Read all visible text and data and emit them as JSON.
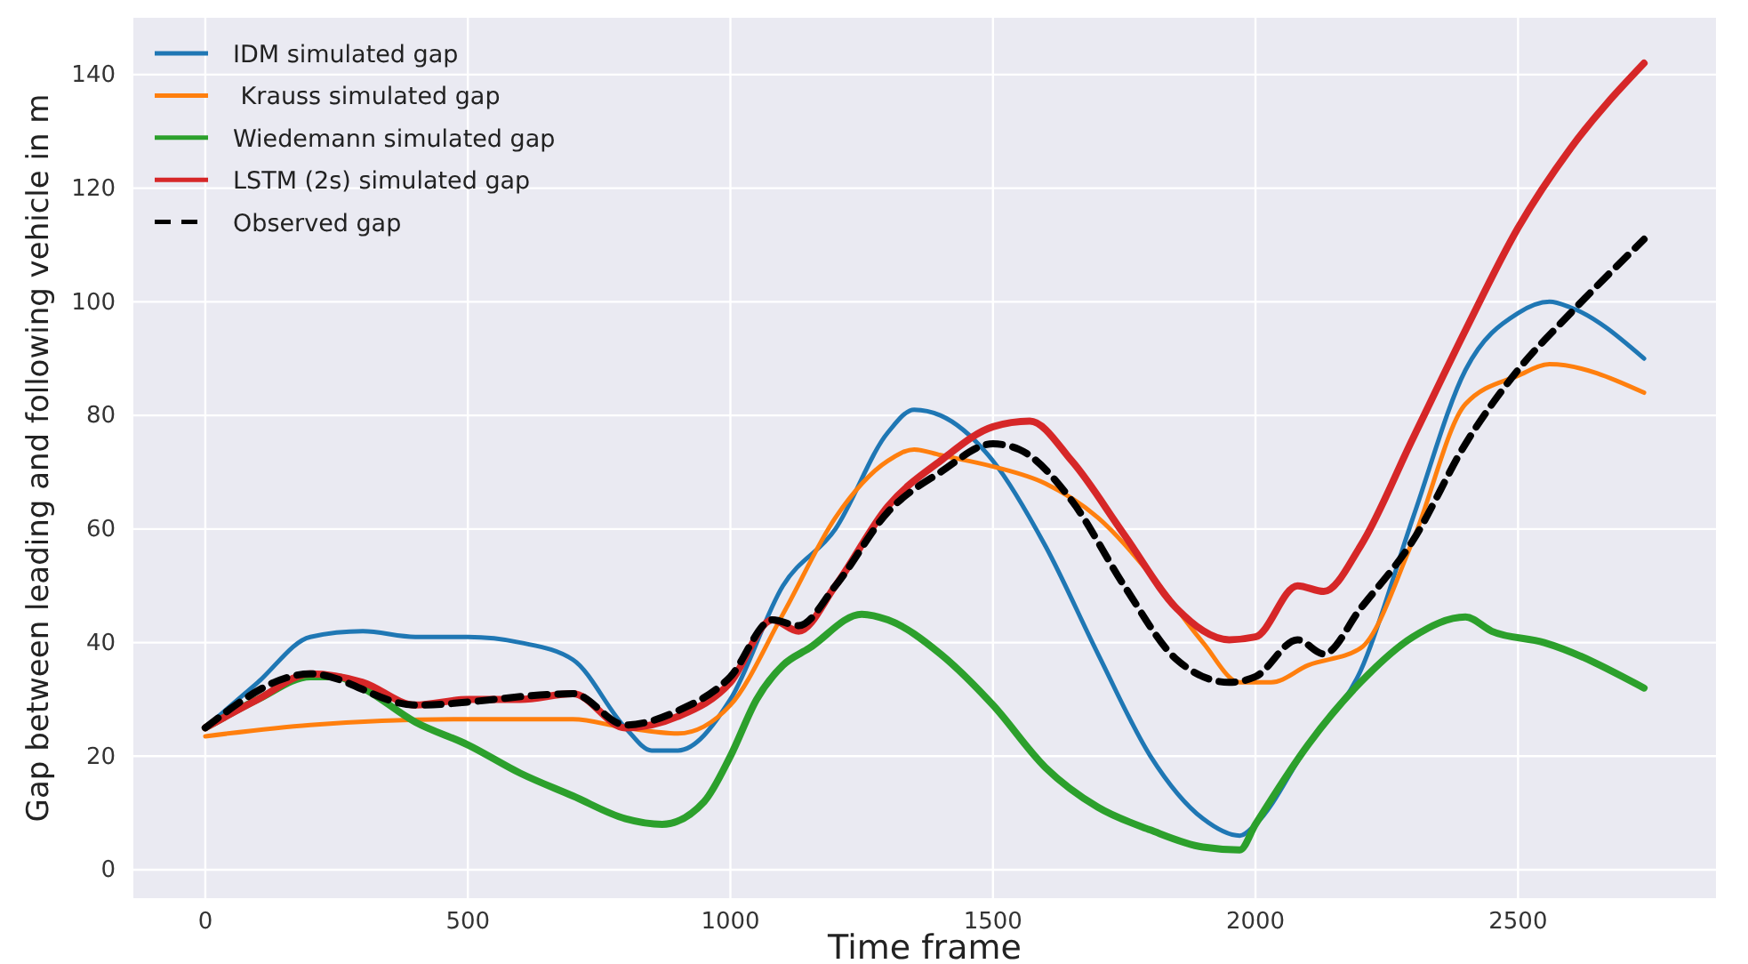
{
  "chart_data": {
    "type": "line",
    "xlabel": "Time frame",
    "ylabel": "Gap between leading and following vehicle in m",
    "xlim": [
      -137,
      2877
    ],
    "ylim": [
      -5,
      150
    ],
    "xticks": [
      0,
      500,
      1000,
      1500,
      2000,
      2500
    ],
    "yticks": [
      0,
      20,
      40,
      60,
      80,
      100,
      120,
      140
    ],
    "grid": true,
    "legend": "top left",
    "series": [
      {
        "name": "IDM simulated gap",
        "color": "#1f77b4",
        "x": [
          0,
          100,
          200,
          300,
          400,
          500,
          600,
          700,
          800,
          850,
          900,
          1000,
          1100,
          1200,
          1300,
          1350,
          1400,
          1500,
          1600,
          1700,
          1800,
          1900,
          1970,
          2000,
          2100,
          2200,
          2300,
          2400,
          2500,
          2560,
          2600,
          2740
        ],
        "values": [
          25,
          33,
          41,
          42,
          41,
          41,
          40,
          37,
          25,
          21,
          21,
          30,
          50,
          60,
          77,
          81,
          80,
          72,
          57,
          38,
          20,
          9,
          6,
          8,
          22,
          35,
          62,
          88,
          98,
          100,
          99,
          90
        ]
      },
      {
        "name": " Krauss simulated gap",
        "color": "#ff7f0e",
        "x": [
          0,
          200,
          500,
          700,
          800,
          900,
          1000,
          1100,
          1200,
          1300,
          1350,
          1400,
          1500,
          1600,
          1700,
          1800,
          1900,
          1970,
          2030,
          2100,
          2200,
          2300,
          2400,
          2500,
          2560,
          2740
        ],
        "values": [
          23.5,
          25.5,
          26.5,
          26.5,
          25,
          24,
          29,
          45,
          62,
          72,
          74,
          73,
          71,
          68,
          62,
          52,
          40,
          33,
          33,
          36,
          39,
          58,
          82,
          87,
          89,
          84
        ]
      },
      {
        "name": "Wiedemann simulated gap",
        "color": "#2ca02c",
        "x": [
          0,
          100,
          200,
          250,
          300,
          400,
          500,
          600,
          700,
          800,
          870,
          950,
          1000,
          1050,
          1100,
          1150,
          1250,
          1300,
          1400,
          1500,
          1600,
          1700,
          1800,
          1900,
          1970,
          2000,
          2100,
          2200,
          2300,
          2400,
          2450,
          2550,
          2740
        ],
        "values": [
          25,
          30,
          34,
          34,
          32,
          26,
          22,
          17,
          13,
          9,
          8,
          12,
          20,
          30,
          36,
          39,
          45,
          44,
          38,
          29,
          18,
          11,
          7,
          4,
          3.5,
          8,
          22,
          33,
          41,
          44.5,
          42,
          40,
          32
        ]
      },
      {
        "name": "LSTM (2s) simulated gap",
        "color": "#d62728",
        "x": [
          0,
          100,
          200,
          300,
          400,
          500,
          600,
          700,
          800,
          900,
          1000,
          1080,
          1130,
          1200,
          1300,
          1400,
          1500,
          1570,
          1650,
          1750,
          1850,
          1950,
          2000,
          2080,
          2130,
          2200,
          2300,
          2400,
          2500,
          2600,
          2740
        ],
        "values": [
          25,
          30,
          34.5,
          33,
          29,
          30,
          30,
          31,
          25,
          27,
          33,
          44,
          42,
          50,
          64,
          72,
          78,
          79,
          72,
          59,
          46,
          40.5,
          41,
          50,
          49,
          57,
          76,
          95,
          113,
          127,
          142
        ]
      },
      {
        "name": "Observed gap",
        "color": "#000000",
        "line_style": "dashed",
        "x": [
          0,
          200,
          400,
          700,
          800,
          900,
          1000,
          1080,
          1130,
          1200,
          1300,
          1400,
          1500,
          1550,
          1650,
          1750,
          1850,
          1950,
          2000,
          2080,
          2130,
          2200,
          2300,
          2400,
          2500,
          2600,
          2740
        ],
        "values": [
          25,
          34.5,
          29,
          31,
          25.5,
          28,
          34,
          44,
          43,
          50,
          63,
          70,
          75,
          74,
          65,
          50,
          37,
          33,
          34,
          40.5,
          38,
          46,
          58,
          75,
          88,
          98,
          111
        ]
      }
    ]
  }
}
